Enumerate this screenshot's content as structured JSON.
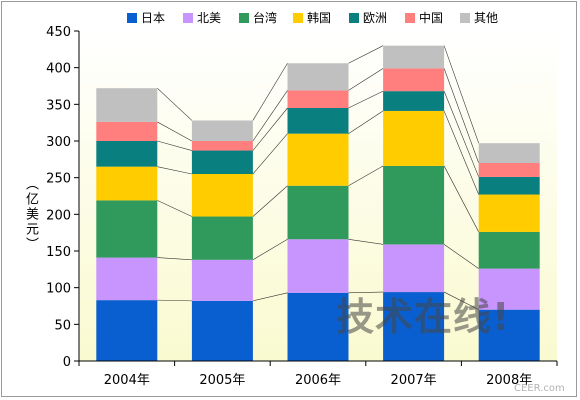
{
  "chart_data": {
    "type": "bar",
    "stacked": true,
    "categories": [
      "2004年",
      "2005年",
      "2006年",
      "2007年",
      "2008年"
    ],
    "ylabel": "（亿美元）",
    "ylim": [
      0,
      450
    ],
    "yticks": [
      0,
      50,
      100,
      150,
      200,
      250,
      300,
      350,
      400,
      450
    ],
    "legend_position": "top",
    "background": "plot area gradient white to pale yellow",
    "series": [
      {
        "name": "日本",
        "color": "#0a5fd0",
        "values": [
          83,
          82,
          93,
          94,
          70
        ]
      },
      {
        "name": "北美",
        "color": "#c895ff",
        "values": [
          58,
          56,
          73,
          65,
          56
        ]
      },
      {
        "name": "台湾",
        "color": "#2f9a5b",
        "values": [
          78,
          59,
          73,
          107,
          50
        ]
      },
      {
        "name": "韩国",
        "color": "#ffcc00",
        "values": [
          46,
          58,
          71,
          75,
          51
        ]
      },
      {
        "name": "欧洲",
        "color": "#0a7f7f",
        "values": [
          35,
          32,
          35,
          27,
          24
        ]
      },
      {
        "name": "中国",
        "color": "#ff7f7f",
        "values": [
          26,
          13,
          24,
          31,
          19
        ]
      },
      {
        "name": "其他",
        "color": "#c0c0c0",
        "values": [
          46,
          28,
          37,
          31,
          27
        ]
      }
    ],
    "connector_lines": true
  },
  "watermark": {
    "text": "技术在线",
    "exclaim": "!",
    "url": "CEER.com"
  }
}
